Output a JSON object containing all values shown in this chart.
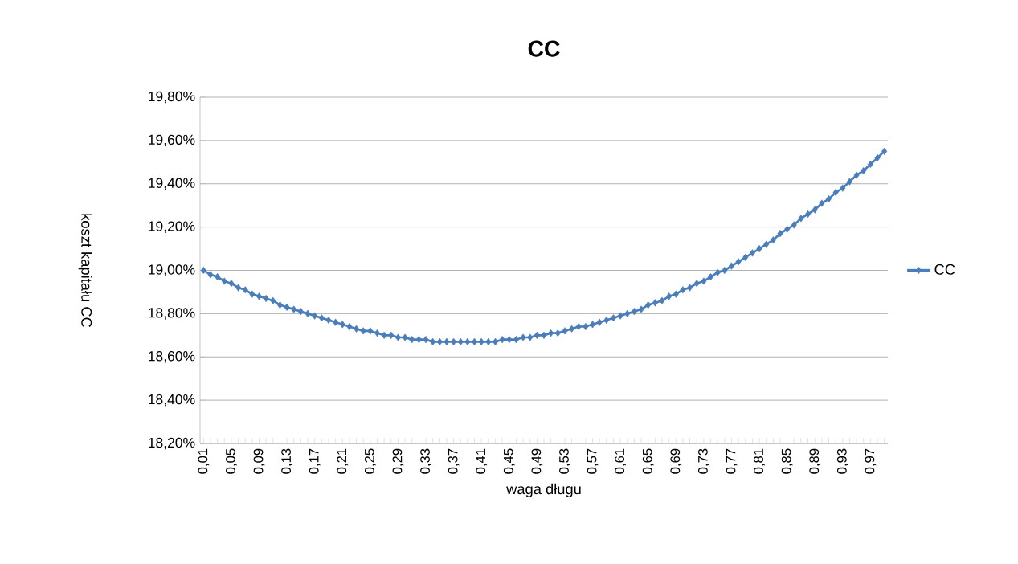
{
  "chart_data": {
    "type": "line",
    "title": "CC",
    "xlabel": "waga długu",
    "ylabel": "koszt kapitału CC",
    "categories": [
      "0,01",
      null,
      null,
      null,
      "0,05",
      null,
      null,
      null,
      "0,09",
      null,
      null,
      null,
      "0,13",
      null,
      null,
      null,
      "0,17",
      null,
      null,
      null,
      "0,21",
      null,
      null,
      null,
      "0,25",
      null,
      null,
      null,
      "0,29",
      null,
      null,
      null,
      "0,33",
      null,
      null,
      null,
      "0,37",
      null,
      null,
      null,
      "0,41",
      null,
      null,
      null,
      "0,45",
      null,
      null,
      null,
      "0,49",
      null,
      null,
      null,
      "0,53",
      null,
      null,
      null,
      "0,57",
      null,
      null,
      null,
      "0,61",
      null,
      null,
      null,
      "0,65",
      null,
      null,
      null,
      "0,69",
      null,
      null,
      null,
      "0,73",
      null,
      null,
      null,
      "0,77",
      null,
      null,
      null,
      "0,81",
      null,
      null,
      null,
      "0,85",
      null,
      null,
      null,
      "0,89",
      null,
      null,
      null,
      "0,93",
      null,
      null,
      null,
      "0,97",
      null,
      null
    ],
    "series": [
      {
        "name": "CC",
        "color": "#4a7ebb",
        "values": [
          19.0,
          18.98,
          18.97,
          18.95,
          18.94,
          18.92,
          18.91,
          18.89,
          18.88,
          18.87,
          18.86,
          18.84,
          18.83,
          18.82,
          18.81,
          18.8,
          18.79,
          18.78,
          18.77,
          18.76,
          18.75,
          18.74,
          18.73,
          18.72,
          18.72,
          18.71,
          18.7,
          18.7,
          18.69,
          18.69,
          18.68,
          18.68,
          18.68,
          18.67,
          18.67,
          18.67,
          18.67,
          18.67,
          18.67,
          18.67,
          18.67,
          18.67,
          18.67,
          18.68,
          18.68,
          18.68,
          18.69,
          18.69,
          18.7,
          18.7,
          18.71,
          18.71,
          18.72,
          18.73,
          18.74,
          18.74,
          18.75,
          18.76,
          18.77,
          18.78,
          18.79,
          18.8,
          18.81,
          18.82,
          18.84,
          18.85,
          18.86,
          18.88,
          18.89,
          18.91,
          18.92,
          18.94,
          18.95,
          18.97,
          18.99,
          19.0,
          19.02,
          19.04,
          19.06,
          19.08,
          19.1,
          19.12,
          19.14,
          19.17,
          19.19,
          19.21,
          19.24,
          19.26,
          19.28,
          19.31,
          19.33,
          19.36,
          19.38,
          19.41,
          19.44,
          19.46,
          19.49,
          19.52,
          19.55
        ]
      }
    ],
    "ylim": [
      18.2,
      19.8
    ],
    "yticks": [
      {
        "value": 18.2,
        "label": "18,20%"
      },
      {
        "value": 18.4,
        "label": "18,40%"
      },
      {
        "value": 18.6,
        "label": "18,60%"
      },
      {
        "value": 18.8,
        "label": "18,80%"
      },
      {
        "value": 19.0,
        "label": "19,00%"
      },
      {
        "value": 19.2,
        "label": "19,20%"
      },
      {
        "value": 19.4,
        "label": "19,40%"
      },
      {
        "value": 19.6,
        "label": "19,60%"
      },
      {
        "value": 19.8,
        "label": "19,80%"
      }
    ],
    "grid": "y",
    "legend": "right",
    "marker": "diamond"
  }
}
